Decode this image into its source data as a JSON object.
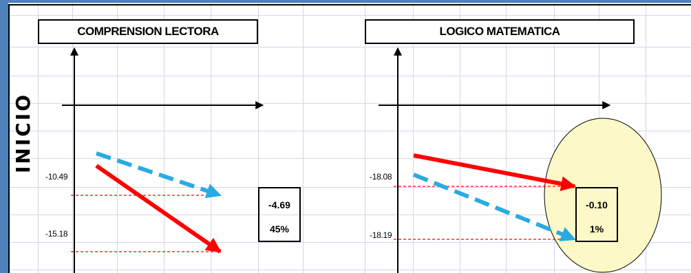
{
  "row_label": "INICIO",
  "chart_data": [
    {
      "type": "line",
      "title": "COMPRENSION LECTORA",
      "y_labels": [
        "-10.49",
        "-15.18"
      ],
      "series": [
        {
          "values": [
            -10.49,
            -10.49
          ],
          "color": "#29abe2",
          "line_style": "dashed"
        },
        {
          "values": [
            -15.18,
            -15.18
          ],
          "color": "#ff0000",
          "line_style": "solid"
        }
      ],
      "difference": "-4.69",
      "percent": "45%",
      "highlighted": false
    },
    {
      "type": "line",
      "title": "LOGICO MATEMATICA",
      "y_labels": [
        "-18.08",
        "-18.19"
      ],
      "series": [
        {
          "values": [
            -18.08,
            -18.08
          ],
          "color": "#ff0000",
          "line_style": "solid"
        },
        {
          "values": [
            -18.19,
            -18.19
          ],
          "color": "#29abe2",
          "line_style": "dashed"
        }
      ],
      "difference": "-0.10",
      "percent": "1%",
      "highlighted": true,
      "highlight_color": "#fcf8c8"
    }
  ]
}
